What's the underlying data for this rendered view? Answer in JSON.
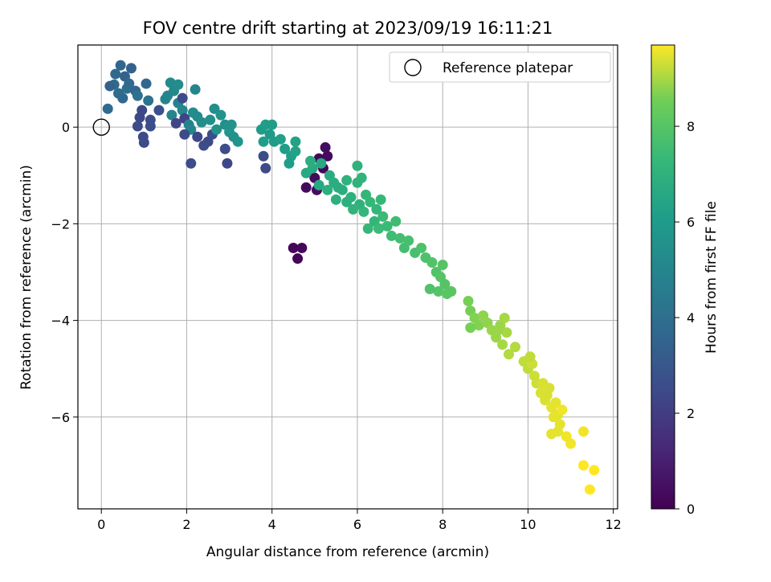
{
  "chart_data": {
    "type": "scatter",
    "title": "FOV centre drift starting at 2023/09/19 16:11:21",
    "xlabel": "Angular distance from reference (arcmin)",
    "ylabel": "Rotation from reference (arcmin)",
    "xlim": [
      -0.55,
      12.1
    ],
    "ylim": [
      -7.9,
      1.7
    ],
    "x_ticks": [
      0,
      2,
      4,
      6,
      8,
      10,
      12
    ],
    "x_tick_labels": [
      "0",
      "2",
      "4",
      "6",
      "8",
      "10",
      "12"
    ],
    "y_ticks": [
      0,
      -2,
      -4,
      -6
    ],
    "y_tick_labels": [
      "0",
      "−2",
      "−4",
      "−6"
    ],
    "grid": true,
    "legend": {
      "placement": "top-right",
      "label": "Reference platepar"
    },
    "reference_point": {
      "x": 0,
      "y": 0
    },
    "colorbar": {
      "label": "Hours from first FF file",
      "colormap": "viridis",
      "range": [
        0,
        9.7
      ],
      "ticks": [
        0,
        2,
        4,
        6,
        8
      ],
      "tick_labels": [
        "0",
        "2",
        "4",
        "6",
        "8"
      ]
    },
    "points": [
      {
        "x": 0.33,
        "y": 1.1,
        "c": 3.7
      },
      {
        "x": 0.45,
        "y": 1.28,
        "c": 3.6
      },
      {
        "x": 0.3,
        "y": 0.88,
        "c": 3.8
      },
      {
        "x": 0.55,
        "y": 1.05,
        "c": 3.5
      },
      {
        "x": 0.7,
        "y": 1.22,
        "c": 3.4
      },
      {
        "x": 0.4,
        "y": 0.7,
        "c": 3.9
      },
      {
        "x": 0.6,
        "y": 0.8,
        "c": 4.0
      },
      {
        "x": 0.8,
        "y": 0.75,
        "c": 3.6
      },
      {
        "x": 0.5,
        "y": 0.6,
        "c": 3.7
      },
      {
        "x": 0.65,
        "y": 0.9,
        "c": 3.8
      },
      {
        "x": 0.2,
        "y": 0.85,
        "c": 3.5
      },
      {
        "x": 0.85,
        "y": 0.65,
        "c": 4.1
      },
      {
        "x": 0.15,
        "y": 0.38,
        "c": 3.8
      },
      {
        "x": 1.05,
        "y": 0.9,
        "c": 3.6
      },
      {
        "x": 1.1,
        "y": 0.55,
        "c": 4.2
      },
      {
        "x": 0.95,
        "y": 0.35,
        "c": 2.4
      },
      {
        "x": 0.9,
        "y": 0.2,
        "c": 2.4
      },
      {
        "x": 1.15,
        "y": 0.15,
        "c": 2.6
      },
      {
        "x": 0.85,
        "y": 0.02,
        "c": 2.5
      },
      {
        "x": 1.15,
        "y": 0.02,
        "c": 2.6
      },
      {
        "x": 0.98,
        "y": -0.2,
        "c": 2.5
      },
      {
        "x": 1.0,
        "y": -0.32,
        "c": 2.5
      },
      {
        "x": 1.35,
        "y": 0.35,
        "c": 2.7
      },
      {
        "x": 1.5,
        "y": 0.58,
        "c": 5.0
      },
      {
        "x": 1.62,
        "y": 0.92,
        "c": 5.2
      },
      {
        "x": 1.7,
        "y": 0.75,
        "c": 5.1
      },
      {
        "x": 1.8,
        "y": 0.88,
        "c": 5.3
      },
      {
        "x": 1.55,
        "y": 0.65,
        "c": 5.0
      },
      {
        "x": 1.8,
        "y": 0.5,
        "c": 4.9
      },
      {
        "x": 1.9,
        "y": 0.35,
        "c": 5.1
      },
      {
        "x": 1.65,
        "y": 0.25,
        "c": 5.0
      },
      {
        "x": 1.75,
        "y": 0.08,
        "c": 2.3
      },
      {
        "x": 1.95,
        "y": 0.18,
        "c": 2.2
      },
      {
        "x": 2.05,
        "y": 0.05,
        "c": 4.8
      },
      {
        "x": 2.15,
        "y": 0.3,
        "c": 5.3
      },
      {
        "x": 2.25,
        "y": 0.22,
        "c": 5.2
      },
      {
        "x": 2.35,
        "y": 0.1,
        "c": 5.4
      },
      {
        "x": 2.1,
        "y": -0.05,
        "c": 5.0
      },
      {
        "x": 1.95,
        "y": -0.15,
        "c": 2.5
      },
      {
        "x": 2.25,
        "y": -0.2,
        "c": 2.4
      },
      {
        "x": 2.4,
        "y": -0.38,
        "c": 2.6
      },
      {
        "x": 2.5,
        "y": -0.3,
        "c": 2.5
      },
      {
        "x": 2.6,
        "y": -0.15,
        "c": 2.6
      },
      {
        "x": 2.7,
        "y": -0.05,
        "c": 5.6
      },
      {
        "x": 2.55,
        "y": 0.15,
        "c": 5.5
      },
      {
        "x": 2.65,
        "y": 0.38,
        "c": 5.4
      },
      {
        "x": 2.8,
        "y": 0.25,
        "c": 5.6
      },
      {
        "x": 2.9,
        "y": 0.05,
        "c": 5.5
      },
      {
        "x": 3.0,
        "y": -0.1,
        "c": 5.7
      },
      {
        "x": 3.05,
        "y": 0.05,
        "c": 5.6
      },
      {
        "x": 3.1,
        "y": -0.2,
        "c": 5.5
      },
      {
        "x": 3.2,
        "y": -0.3,
        "c": 5.7
      },
      {
        "x": 2.9,
        "y": -0.45,
        "c": 2.6
      },
      {
        "x": 2.95,
        "y": -0.75,
        "c": 2.4
      },
      {
        "x": 2.1,
        "y": -0.75,
        "c": 2.6
      },
      {
        "x": 2.2,
        "y": 0.78,
        "c": 5.0
      },
      {
        "x": 1.9,
        "y": 0.6,
        "c": 2.5
      },
      {
        "x": 3.75,
        "y": -0.05,
        "c": 6.0
      },
      {
        "x": 3.85,
        "y": 0.05,
        "c": 6.1
      },
      {
        "x": 3.95,
        "y": -0.15,
        "c": 5.9
      },
      {
        "x": 4.05,
        "y": -0.3,
        "c": 6.0
      },
      {
        "x": 4.2,
        "y": -0.25,
        "c": 6.2
      },
      {
        "x": 4.3,
        "y": -0.45,
        "c": 6.1
      },
      {
        "x": 4.45,
        "y": -0.6,
        "c": 6.2
      },
      {
        "x": 4.55,
        "y": -0.5,
        "c": 6.3
      },
      {
        "x": 4.4,
        "y": -0.75,
        "c": 6.1
      },
      {
        "x": 3.8,
        "y": -0.6,
        "c": 2.6
      },
      {
        "x": 3.85,
        "y": -0.85,
        "c": 2.5
      },
      {
        "x": 3.8,
        "y": -0.3,
        "c": 6.1
      },
      {
        "x": 4.0,
        "y": 0.05,
        "c": 6.0
      },
      {
        "x": 4.5,
        "y": -2.5,
        "c": 0.1
      },
      {
        "x": 4.7,
        "y": -2.5,
        "c": 0.2
      },
      {
        "x": 4.6,
        "y": -2.72,
        "c": 0.1
      },
      {
        "x": 4.8,
        "y": -1.25,
        "c": 0.3
      },
      {
        "x": 5.05,
        "y": -1.3,
        "c": 0.4
      },
      {
        "x": 5.0,
        "y": -1.05,
        "c": 0.3
      },
      {
        "x": 5.2,
        "y": -0.85,
        "c": 0.2
      },
      {
        "x": 5.3,
        "y": -0.6,
        "c": 0.3
      },
      {
        "x": 5.1,
        "y": -0.65,
        "c": 0.2
      },
      {
        "x": 5.25,
        "y": -0.42,
        "c": 0.4
      },
      {
        "x": 4.8,
        "y": -0.95,
        "c": 6.6
      },
      {
        "x": 4.95,
        "y": -0.85,
        "c": 6.7
      },
      {
        "x": 5.15,
        "y": -0.75,
        "c": 6.6
      },
      {
        "x": 4.9,
        "y": -0.7,
        "c": 6.8
      },
      {
        "x": 5.35,
        "y": -1.0,
        "c": 6.7
      },
      {
        "x": 5.45,
        "y": -1.15,
        "c": 6.8
      },
      {
        "x": 5.3,
        "y": -1.3,
        "c": 6.9
      },
      {
        "x": 5.5,
        "y": -1.5,
        "c": 6.9
      },
      {
        "x": 5.65,
        "y": -1.3,
        "c": 6.8
      },
      {
        "x": 5.75,
        "y": -1.1,
        "c": 7.0
      },
      {
        "x": 5.85,
        "y": -1.45,
        "c": 6.9
      },
      {
        "x": 6.0,
        "y": -1.15,
        "c": 7.1
      },
      {
        "x": 6.0,
        "y": -0.8,
        "c": 7.0
      },
      {
        "x": 6.1,
        "y": -1.05,
        "c": 7.1
      },
      {
        "x": 6.2,
        "y": -1.4,
        "c": 7.2
      },
      {
        "x": 6.05,
        "y": -1.6,
        "c": 7.0
      },
      {
        "x": 5.9,
        "y": -1.7,
        "c": 7.1
      },
      {
        "x": 6.15,
        "y": -1.75,
        "c": 7.2
      },
      {
        "x": 6.3,
        "y": -1.55,
        "c": 7.3
      },
      {
        "x": 6.45,
        "y": -1.7,
        "c": 7.2
      },
      {
        "x": 6.55,
        "y": -1.5,
        "c": 7.3
      },
      {
        "x": 6.4,
        "y": -1.95,
        "c": 7.2
      },
      {
        "x": 6.6,
        "y": -1.85,
        "c": 7.4
      },
      {
        "x": 6.25,
        "y": -2.1,
        "c": 7.3
      },
      {
        "x": 6.5,
        "y": -2.1,
        "c": 7.4
      },
      {
        "x": 6.7,
        "y": -2.05,
        "c": 7.4
      },
      {
        "x": 6.8,
        "y": -2.25,
        "c": 7.5
      },
      {
        "x": 6.9,
        "y": -1.95,
        "c": 7.5
      },
      {
        "x": 5.55,
        "y": -1.25,
        "c": 6.8
      },
      {
        "x": 5.75,
        "y": -1.55,
        "c": 6.9
      },
      {
        "x": 5.1,
        "y": -1.2,
        "c": 6.6
      },
      {
        "x": 4.55,
        "y": -0.3,
        "c": 6.3
      },
      {
        "x": 7.0,
        "y": -2.3,
        "c": 7.6
      },
      {
        "x": 7.1,
        "y": -2.5,
        "c": 7.6
      },
      {
        "x": 7.2,
        "y": -2.35,
        "c": 7.7
      },
      {
        "x": 7.35,
        "y": -2.6,
        "c": 7.7
      },
      {
        "x": 7.5,
        "y": -2.5,
        "c": 7.8
      },
      {
        "x": 7.6,
        "y": -2.7,
        "c": 7.8
      },
      {
        "x": 7.75,
        "y": -2.8,
        "c": 7.9
      },
      {
        "x": 7.85,
        "y": -3.0,
        "c": 7.9
      },
      {
        "x": 7.95,
        "y": -3.1,
        "c": 8.0
      },
      {
        "x": 8.05,
        "y": -3.25,
        "c": 8.0
      },
      {
        "x": 7.9,
        "y": -3.4,
        "c": 8.0
      },
      {
        "x": 8.1,
        "y": -3.45,
        "c": 8.1
      },
      {
        "x": 8.2,
        "y": -3.4,
        "c": 8.1
      },
      {
        "x": 7.7,
        "y": -3.35,
        "c": 7.9
      },
      {
        "x": 8.0,
        "y": -2.85,
        "c": 8.0
      },
      {
        "x": 8.6,
        "y": -3.6,
        "c": 8.6
      },
      {
        "x": 8.65,
        "y": -3.8,
        "c": 8.6
      },
      {
        "x": 8.75,
        "y": -3.95,
        "c": 8.7
      },
      {
        "x": 8.85,
        "y": -4.1,
        "c": 8.7
      },
      {
        "x": 8.95,
        "y": -3.9,
        "c": 8.8
      },
      {
        "x": 9.05,
        "y": -4.05,
        "c": 8.8
      },
      {
        "x": 9.15,
        "y": -4.2,
        "c": 8.9
      },
      {
        "x": 9.25,
        "y": -4.35,
        "c": 8.9
      },
      {
        "x": 9.35,
        "y": -4.1,
        "c": 8.9
      },
      {
        "x": 9.45,
        "y": -3.95,
        "c": 9.0
      },
      {
        "x": 9.5,
        "y": -4.25,
        "c": 9.0
      },
      {
        "x": 9.4,
        "y": -4.5,
        "c": 9.0
      },
      {
        "x": 9.55,
        "y": -4.7,
        "c": 9.1
      },
      {
        "x": 8.65,
        "y": -4.15,
        "c": 8.6
      },
      {
        "x": 9.7,
        "y": -4.55,
        "c": 9.1
      },
      {
        "x": 9.9,
        "y": -4.85,
        "c": 9.2
      },
      {
        "x": 10.0,
        "y": -5.0,
        "c": 9.2
      },
      {
        "x": 10.1,
        "y": -4.9,
        "c": 9.3
      },
      {
        "x": 10.15,
        "y": -5.15,
        "c": 9.3
      },
      {
        "x": 10.05,
        "y": -4.75,
        "c": 9.2
      },
      {
        "x": 10.2,
        "y": -5.3,
        "c": 9.3
      },
      {
        "x": 10.3,
        "y": -5.5,
        "c": 9.4
      },
      {
        "x": 10.4,
        "y": -5.65,
        "c": 9.4
      },
      {
        "x": 10.5,
        "y": -5.4,
        "c": 9.4
      },
      {
        "x": 10.55,
        "y": -5.8,
        "c": 9.5
      },
      {
        "x": 10.6,
        "y": -6.0,
        "c": 9.5
      },
      {
        "x": 10.65,
        "y": -5.7,
        "c": 9.5
      },
      {
        "x": 10.7,
        "y": -5.95,
        "c": 9.5
      },
      {
        "x": 10.75,
        "y": -6.15,
        "c": 9.5
      },
      {
        "x": 10.8,
        "y": -5.85,
        "c": 9.6
      },
      {
        "x": 10.55,
        "y": -6.35,
        "c": 9.5
      },
      {
        "x": 10.7,
        "y": -6.3,
        "c": 9.5
      },
      {
        "x": 10.9,
        "y": -6.4,
        "c": 9.6
      },
      {
        "x": 11.0,
        "y": -6.55,
        "c": 9.6
      },
      {
        "x": 11.3,
        "y": -6.3,
        "c": 9.6
      },
      {
        "x": 11.3,
        "y": -7.0,
        "c": 9.7
      },
      {
        "x": 11.55,
        "y": -7.1,
        "c": 9.7
      },
      {
        "x": 11.45,
        "y": -7.5,
        "c": 9.7
      },
      {
        "x": 10.45,
        "y": -5.55,
        "c": 9.4
      },
      {
        "x": 10.35,
        "y": -5.3,
        "c": 9.4
      },
      {
        "x": 9.3,
        "y": -4.2,
        "c": 8.9
      }
    ]
  }
}
